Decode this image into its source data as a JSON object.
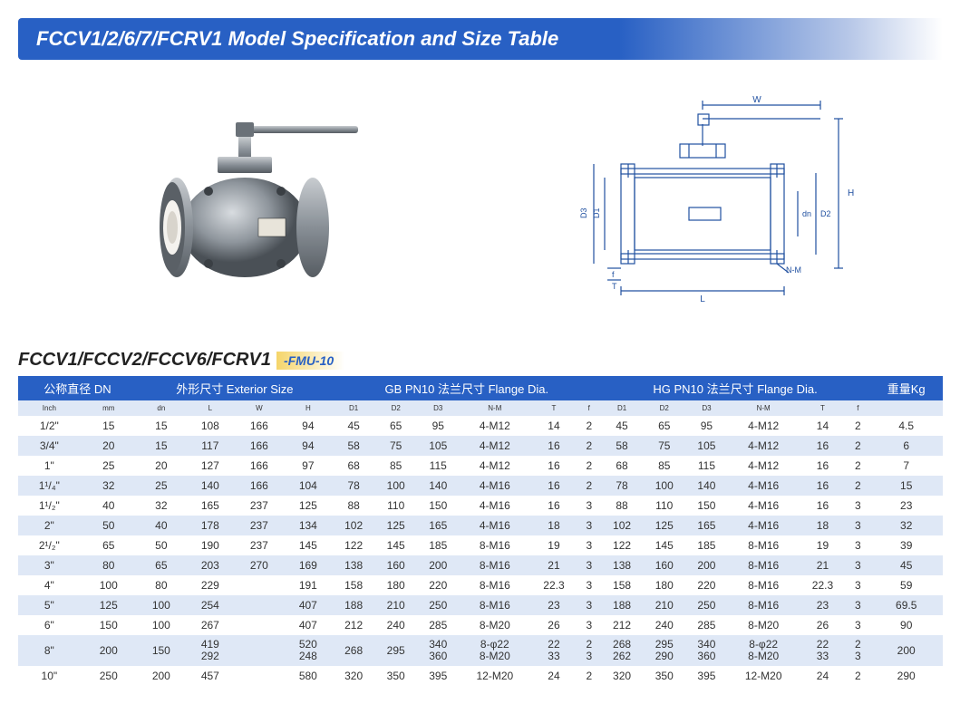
{
  "title": "FCCV1/2/6/7/FCRV1 Model Specification and Size Table",
  "subheader_models": "FCCV1/FCCV2/FCCV6/FCRV1",
  "subheader_suffix": "-FMU-10",
  "headers": {
    "dn": "公称直径  DN",
    "ext": "外形尺寸  Exterior Size",
    "gb": "GB PN10  法兰尺寸   Flange Dia.",
    "hg": "HG PN10  法兰尺寸   Flange Dia.",
    "weight": "重量Kg",
    "cols": [
      "Inch",
      "mm",
      "dn",
      "L",
      "W",
      "H",
      "D1",
      "D2",
      "D3",
      "N-M",
      "T",
      "f",
      "D1",
      "D2",
      "D3",
      "N-M",
      "T",
      "f",
      ""
    ]
  },
  "rows": [
    [
      "1/2\"",
      "15",
      "15",
      "108",
      "166",
      "94",
      "45",
      "65",
      "95",
      "4-M12",
      "14",
      "2",
      "45",
      "65",
      "95",
      "4-M12",
      "14",
      "2",
      "4.5"
    ],
    [
      "3/4\"",
      "20",
      "15",
      "117",
      "166",
      "94",
      "58",
      "75",
      "105",
      "4-M12",
      "16",
      "2",
      "58",
      "75",
      "105",
      "4-M12",
      "16",
      "2",
      "6"
    ],
    [
      "1\"",
      "25",
      "20",
      "127",
      "166",
      "97",
      "68",
      "85",
      "115",
      "4-M12",
      "16",
      "2",
      "68",
      "85",
      "115",
      "4-M12",
      "16",
      "2",
      "7"
    ],
    [
      "1¹/₄\"",
      "32",
      "25",
      "140",
      "166",
      "104",
      "78",
      "100",
      "140",
      "4-M16",
      "16",
      "2",
      "78",
      "100",
      "140",
      "4-M16",
      "16",
      "2",
      "15"
    ],
    [
      "1¹/₂\"",
      "40",
      "32",
      "165",
      "237",
      "125",
      "88",
      "110",
      "150",
      "4-M16",
      "16",
      "3",
      "88",
      "110",
      "150",
      "4-M16",
      "16",
      "3",
      "23"
    ],
    [
      "2\"",
      "50",
      "40",
      "178",
      "237",
      "134",
      "102",
      "125",
      "165",
      "4-M16",
      "18",
      "3",
      "102",
      "125",
      "165",
      "4-M16",
      "18",
      "3",
      "32"
    ],
    [
      "2¹/₂\"",
      "65",
      "50",
      "190",
      "237",
      "145",
      "122",
      "145",
      "185",
      "8-M16",
      "19",
      "3",
      "122",
      "145",
      "185",
      "8-M16",
      "19",
      "3",
      "39"
    ],
    [
      "3\"",
      "80",
      "65",
      "203",
      "270",
      "169",
      "138",
      "160",
      "200",
      "8-M16",
      "21",
      "3",
      "138",
      "160",
      "200",
      "8-M16",
      "21",
      "3",
      "45"
    ],
    [
      "4\"",
      "100",
      "80",
      "229",
      "",
      "191",
      "158",
      "180",
      "220",
      "8-M16",
      "22.3",
      "3",
      "158",
      "180",
      "220",
      "8-M16",
      "22.3",
      "3",
      "59"
    ],
    [
      "5\"",
      "125",
      "100",
      "254",
      "",
      "407",
      "188",
      "210",
      "250",
      "8-M16",
      "23",
      "3",
      "188",
      "210",
      "250",
      "8-M16",
      "23",
      "3",
      "69.5"
    ],
    [
      "6\"",
      "150",
      "100",
      "267",
      "",
      "407",
      "212",
      "240",
      "285",
      "8-M20",
      "26",
      "3",
      "212",
      "240",
      "285",
      "8-M20",
      "26",
      "3",
      "90"
    ],
    [
      "8\"",
      "200",
      "150",
      "419\n292",
      "",
      "520\n248",
      "268",
      "295",
      "340\n360",
      "8-φ22\n8-M20",
      "22\n33",
      "2\n3",
      "268\n262",
      "295\n290",
      "340\n360",
      "8-φ22\n8-M20",
      "22\n33",
      "2\n3",
      "200"
    ],
    [
      "10\"",
      "250",
      "200",
      "457",
      "",
      "580",
      "320",
      "350",
      "395",
      "12-M20",
      "24",
      "2",
      "320",
      "350",
      "395",
      "12-M20",
      "24",
      "2",
      "290"
    ]
  ],
  "colors": {
    "header_bg": "#2860c4",
    "row_alt": "#dfe8f6",
    "accent": "#f5d56a"
  }
}
